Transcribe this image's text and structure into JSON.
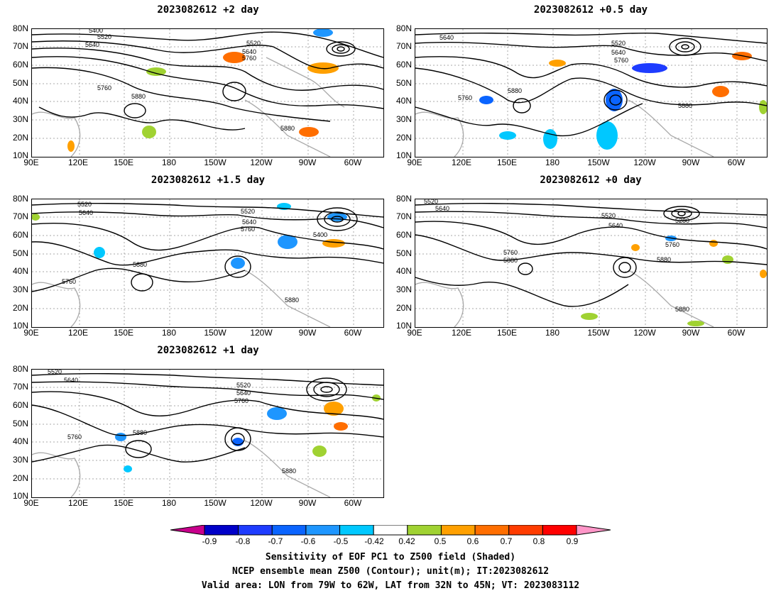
{
  "panels": [
    {
      "title": "2023082612 +2 day"
    },
    {
      "title": "2023082612 +0.5 day"
    },
    {
      "title": "2023082612 +1.5 day"
    },
    {
      "title": "2023082612 +0 day"
    },
    {
      "title": "2023082612 +1 day"
    }
  ],
  "lat_labels": [
    "80N",
    "70N",
    "60N",
    "50N",
    "40N",
    "30N",
    "20N",
    "10N"
  ],
  "lon_labels": [
    "90E",
    "120E",
    "150E",
    "180",
    "150W",
    "120W",
    "90W",
    "60W"
  ],
  "contour_labels": {
    "p0": [
      "5400",
      "5520",
      "5640",
      "5520",
      "5640",
      "5760",
      "5760",
      "5880",
      "5880"
    ],
    "p1": [
      "5640",
      "5520",
      "5640",
      "5760",
      "5760",
      "5880",
      "5880"
    ],
    "p2": [
      "5520",
      "5640",
      "5520",
      "5640",
      "5760",
      "5400",
      "5880",
      "5760",
      "5880"
    ],
    "p3": [
      "5520",
      "5640",
      "5520",
      "5640",
      "5280",
      "5760",
      "5880",
      "5760",
      "5880",
      "5880"
    ],
    "p4": [
      "5520",
      "5640",
      "5520",
      "5640",
      "5760",
      "5880",
      "5760",
      "5880"
    ]
  },
  "colorbar": {
    "ticks": [
      "-0.9",
      "-0.8",
      "-0.7",
      "-0.6",
      "-0.5",
      "-0.42",
      "0.42",
      "0.5",
      "0.6",
      "0.7",
      "0.8",
      "0.9"
    ],
    "colors": [
      "#c8008c",
      "#0000c8",
      "#1e3cff",
      "#0a64ff",
      "#1e96ff",
      "#00c8ff",
      "#ffffff",
      "#a0d232",
      "#ffa000",
      "#ff6e00",
      "#ff3c00",
      "#ff0000",
      "#ff96c8"
    ]
  },
  "caption": {
    "line1": "Sensitivity of EOF PC1 to Z500 field (Shaded)",
    "line2": "NCEP ensemble mean Z500 (Contour); unit(m); IT:2023082612",
    "line3": "Valid area: LON from 79W to 62W, LAT from 32N to 45N; VT: 2023083112"
  }
}
